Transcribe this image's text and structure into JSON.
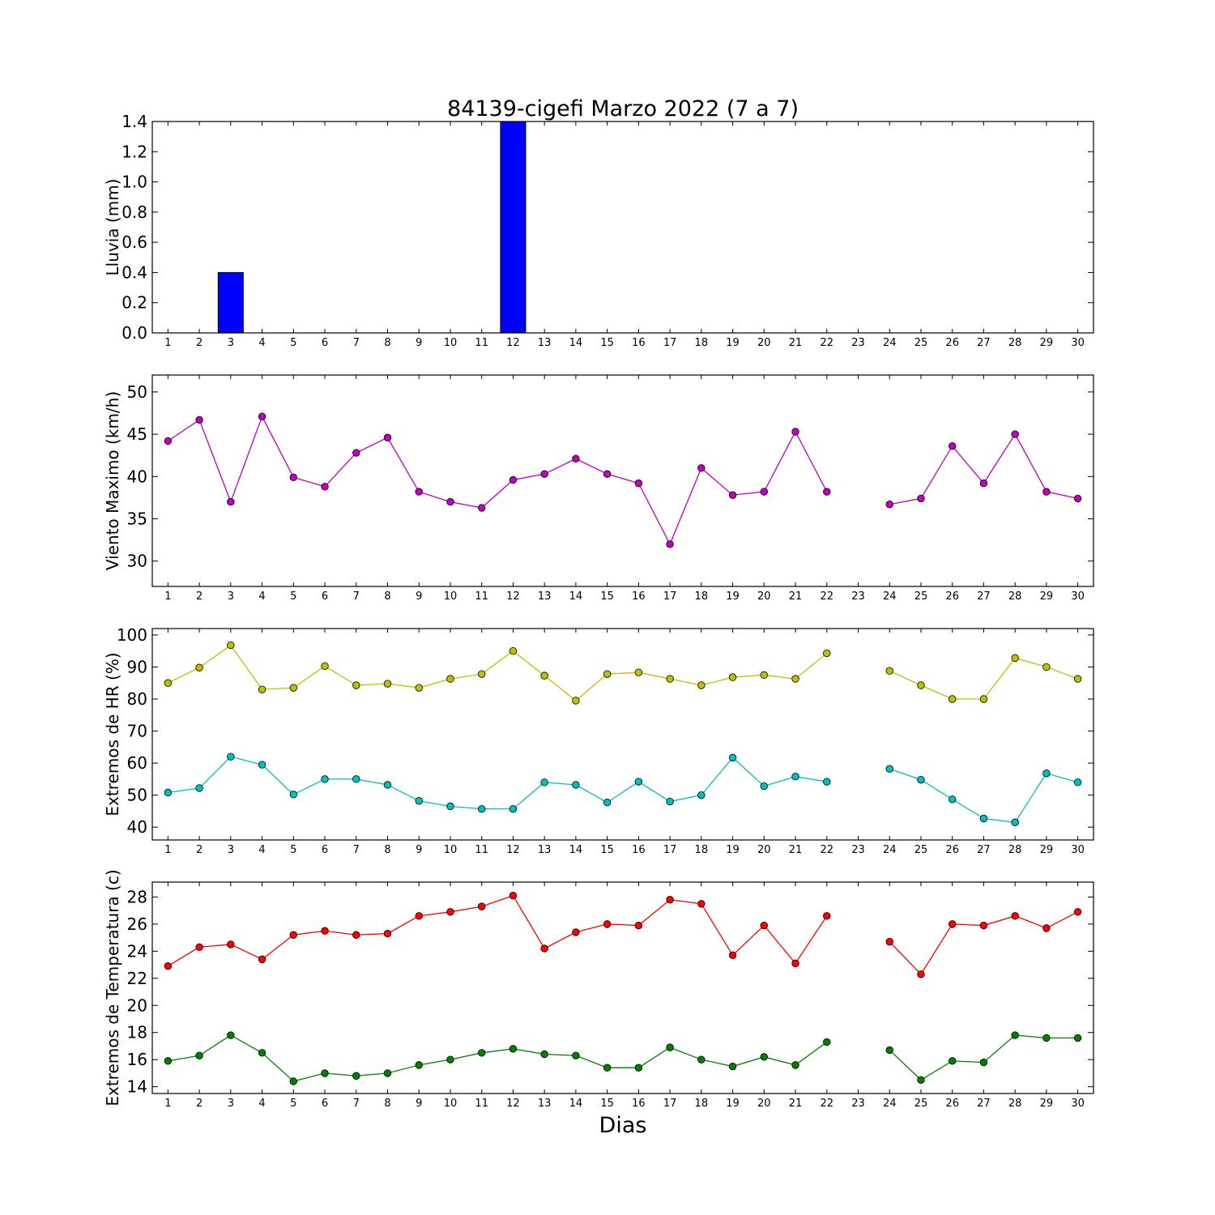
{
  "chart_data": {
    "title": "84139-cigefi Marzo 2022  (7 a 7)",
    "xlabel": "Dias",
    "days": [
      1,
      2,
      3,
      4,
      5,
      6,
      7,
      8,
      9,
      10,
      11,
      12,
      13,
      14,
      15,
      16,
      17,
      18,
      19,
      20,
      21,
      22,
      23,
      24,
      25,
      26,
      27,
      28,
      29,
      30
    ],
    "x_tick_labels": [
      "1",
      "2",
      "3",
      "4",
      "5",
      "6",
      "7",
      "8",
      "9",
      "10",
      "11",
      "12",
      "13",
      "14",
      "15",
      "16",
      "17",
      "18",
      "19",
      "20",
      "21",
      "22",
      "23",
      "24",
      "25",
      "26",
      "27",
      "28",
      "29",
      "30"
    ],
    "panels": [
      {
        "type": "bar",
        "ylabel": "Lluvia (mm)",
        "ylim": [
          0,
          1.4
        ],
        "yticks": [
          0,
          0.2,
          0.4,
          0.6,
          0.8,
          1.0,
          1.2,
          1.4
        ],
        "ytick_labels": [
          "0.0",
          "0.2",
          "0.4",
          "0.6",
          "0.8",
          "1.0",
          "1.2",
          "1.4"
        ],
        "series": [
          {
            "color": "#0000ff",
            "values": [
              0,
              0,
              0.4,
              0,
              0,
              0,
              0,
              0,
              0,
              0,
              0,
              1.4,
              0,
              0,
              0,
              0,
              0,
              0,
              0,
              0,
              0,
              0,
              null,
              0,
              0,
              0,
              0,
              0,
              0,
              0
            ]
          }
        ]
      },
      {
        "type": "line",
        "ylabel": "Viento Maximo (km/h)",
        "ylim": [
          27,
          52
        ],
        "yticks": [
          30,
          35,
          40,
          45,
          50
        ],
        "ytick_labels": [
          "30",
          "35",
          "40",
          "45",
          "50"
        ],
        "series": [
          {
            "color": "#bf00bf",
            "values": [
              44.2,
              46.7,
              37.0,
              47.1,
              39.9,
              38.8,
              42.8,
              44.6,
              38.2,
              37.0,
              36.3,
              39.6,
              40.3,
              42.1,
              40.3,
              39.2,
              32.0,
              41.0,
              37.8,
              38.2,
              45.3,
              38.2,
              null,
              36.7,
              37.4,
              43.6,
              39.2,
              45.0,
              38.2,
              37.4
            ]
          }
        ]
      },
      {
        "type": "line",
        "ylabel": "Extremos de HR (%)",
        "ylim": [
          36,
          102
        ],
        "yticks": [
          40,
          50,
          60,
          70,
          80,
          90,
          100
        ],
        "ytick_labels": [
          "40",
          "50",
          "60",
          "70",
          "80",
          "90",
          "100"
        ],
        "series": [
          {
            "color": "#bfbf00",
            "values": [
              85.0,
              89.8,
              96.8,
              83.0,
              83.5,
              90.3,
              84.3,
              84.8,
              83.5,
              86.3,
              87.8,
              95.0,
              87.3,
              79.5,
              87.8,
              88.3,
              86.3,
              84.3,
              86.8,
              87.5,
              86.3,
              94.3,
              null,
              88.8,
              84.3,
              80.0,
              80.0,
              92.8,
              90.0,
              86.3
            ]
          },
          {
            "color": "#00bfbf",
            "values": [
              50.8,
              52.2,
              62.0,
              59.5,
              50.2,
              55.0,
              55.0,
              53.2,
              48.2,
              46.5,
              45.7,
              45.7,
              54.0,
              53.2,
              47.7,
              54.2,
              48.0,
              50.0,
              61.7,
              52.8,
              55.8,
              54.2,
              null,
              58.2,
              54.8,
              48.7,
              42.7,
              41.5,
              56.8,
              54.0
            ]
          }
        ]
      },
      {
        "type": "line",
        "ylabel": "Extremos de Temperatura (c)",
        "ylim": [
          13.5,
          29.1
        ],
        "yticks": [
          14,
          16,
          18,
          20,
          22,
          24,
          26,
          28
        ],
        "ytick_labels": [
          "14",
          "16",
          "18",
          "20",
          "22",
          "24",
          "26",
          "28"
        ],
        "series": [
          {
            "color": "#ff0000",
            "values": [
              22.9,
              24.3,
              24.5,
              23.4,
              25.2,
              25.5,
              25.2,
              25.3,
              26.6,
              26.9,
              27.3,
              28.1,
              24.2,
              25.4,
              26.0,
              25.9,
              27.8,
              27.5,
              23.7,
              25.9,
              23.1,
              26.6,
              null,
              24.7,
              22.3,
              26.0,
              25.9,
              26.6,
              25.7,
              26.9
            ]
          },
          {
            "color": "#008000",
            "values": [
              15.9,
              16.3,
              17.8,
              16.5,
              14.4,
              15.0,
              14.8,
              15.0,
              15.6,
              16.0,
              16.5,
              16.8,
              16.4,
              16.3,
              15.4,
              15.4,
              16.9,
              16.0,
              15.5,
              16.2,
              15.6,
              17.3,
              null,
              16.7,
              14.5,
              15.9,
              15.8,
              17.8,
              17.6,
              17.6
            ]
          }
        ]
      }
    ]
  }
}
